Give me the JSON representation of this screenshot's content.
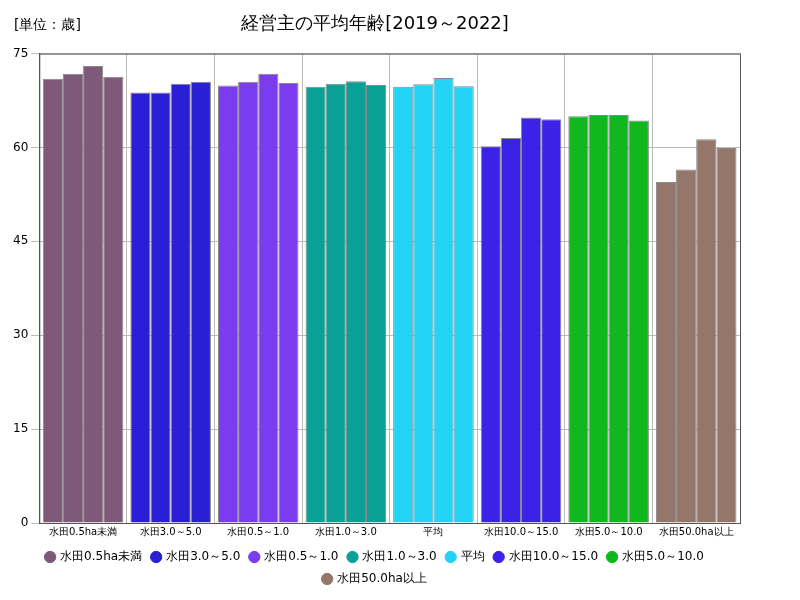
{
  "chart_data": {
    "type": "bar",
    "title": "経営主の平均年齢[2019～2022]",
    "ylabel": "[単位：歳]",
    "categories": [
      "水田0.5ha未満",
      "水田3.0～5.0",
      "水田0.5～1.0",
      "水田1.0～3.0",
      "平均",
      "水田10.0～15.0",
      "水田5.0～10.0",
      "水田50.0ha以上"
    ],
    "series": [
      {
        "values": [
          71.0,
          68.8,
          69.9,
          69.7,
          69.7,
          60.2,
          65.0,
          54.5
        ]
      },
      {
        "values": [
          71.8,
          68.8,
          70.5,
          70.2,
          70.1,
          61.5,
          65.2,
          56.5
        ]
      },
      {
        "values": [
          73.0,
          70.2,
          71.8,
          70.6,
          71.1,
          64.8,
          65.2,
          61.3
        ]
      },
      {
        "values": [
          71.3,
          70.5,
          70.3,
          70.0,
          69.8,
          64.5,
          64.3,
          59.9
        ]
      }
    ],
    "colors": [
      "#7f5a78",
      "#2a1fd6",
      "#7b3cf0",
      "#0aa096",
      "#22d3f5",
      "#3a22e6",
      "#10b81e",
      "#94766a"
    ],
    "ylim": [
      0,
      75
    ],
    "yticks": [
      0,
      15,
      30,
      45,
      60,
      75
    ],
    "grid": true,
    "legend": "bottom"
  }
}
